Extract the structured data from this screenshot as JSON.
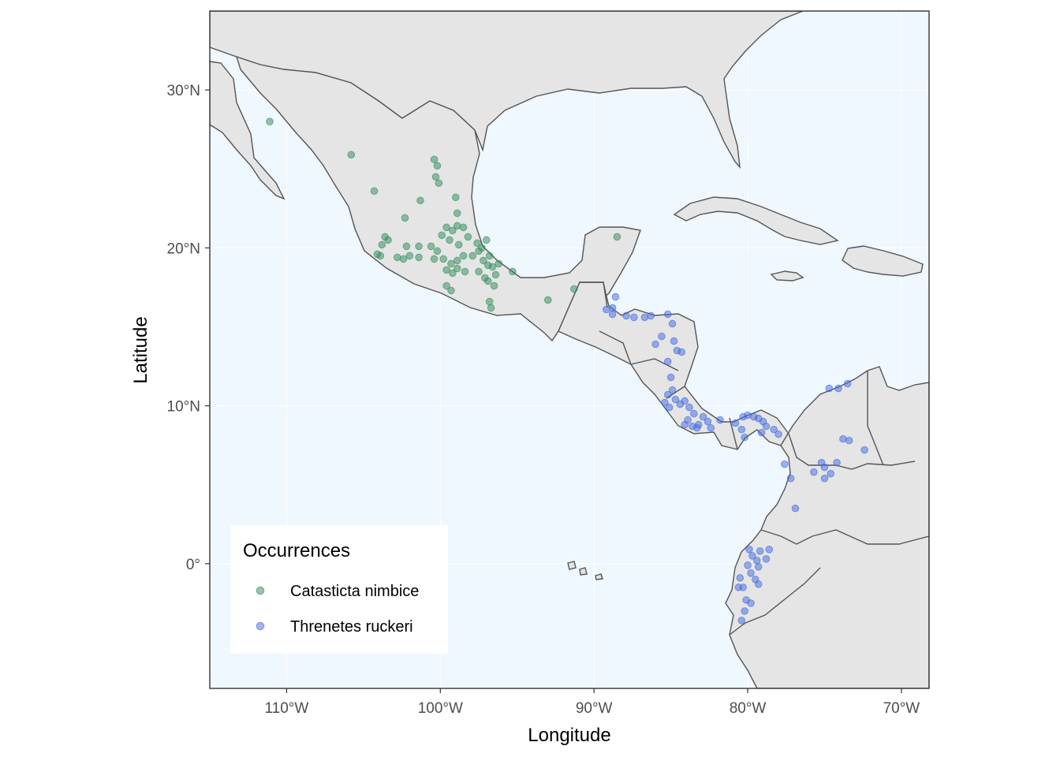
{
  "chart_data": {
    "type": "scatter",
    "map": true,
    "xlabel": "Longitude",
    "ylabel": "Latitude",
    "xlim": [
      -115,
      -68.2
    ],
    "ylim": [
      -7.9,
      35
    ],
    "x_ticks": [
      {
        "value": -110,
        "label": "110°W"
      },
      {
        "value": -100,
        "label": "100°W"
      },
      {
        "value": -90,
        "label": "90°W"
      },
      {
        "value": -80,
        "label": "80°W"
      },
      {
        "value": -70,
        "label": "70°W"
      }
    ],
    "y_ticks": [
      {
        "value": 30,
        "label": "30°N"
      },
      {
        "value": 20,
        "label": "20°N"
      },
      {
        "value": 10,
        "label": "10°N"
      },
      {
        "value": 0,
        "label": "0°"
      }
    ],
    "grid": true,
    "colors": {
      "ocean": "#EFF7FF",
      "land": "#E5E5E5",
      "border": "#555555",
      "grid": "#FFFFFF",
      "catasticta": "#2E8B57",
      "threnetes": "#4169E1"
    },
    "legend": {
      "title": "Occurrences",
      "position": "bottom-left",
      "items": [
        "Catasticta nimbice",
        "Threnetes ruckeri"
      ]
    },
    "series": [
      {
        "name": "Catasticta nimbice",
        "color": "#2E8B57",
        "points": [
          [
            -111.1,
            28.0
          ],
          [
            -105.8,
            25.9
          ],
          [
            -104.3,
            23.6
          ],
          [
            -100.4,
            25.6
          ],
          [
            -100.2,
            25.2
          ],
          [
            -100.3,
            24.5
          ],
          [
            -100.1,
            24.1
          ],
          [
            -101.3,
            23.0
          ],
          [
            -102.3,
            21.9
          ],
          [
            -99.0,
            23.2
          ],
          [
            -98.9,
            22.2
          ],
          [
            -103.6,
            20.7
          ],
          [
            -103.4,
            20.5
          ],
          [
            -103.8,
            20.2
          ],
          [
            -103.9,
            19.5
          ],
          [
            -104.1,
            19.6
          ],
          [
            -102.8,
            19.4
          ],
          [
            -102.4,
            19.3
          ],
          [
            -102.0,
            19.5
          ],
          [
            -102.2,
            20.1
          ],
          [
            -101.4,
            19.4
          ],
          [
            -101.4,
            20.1
          ],
          [
            -100.6,
            20.1
          ],
          [
            -100.2,
            19.8
          ],
          [
            -100.4,
            19.3
          ],
          [
            -99.9,
            20.8
          ],
          [
            -99.6,
            21.3
          ],
          [
            -99.2,
            21.1
          ],
          [
            -99.4,
            20.5
          ],
          [
            -98.8,
            20.2
          ],
          [
            -98.5,
            21.3
          ],
          [
            -98.9,
            21.4
          ],
          [
            -98.2,
            20.7
          ],
          [
            -99.8,
            19.3
          ],
          [
            -99.3,
            19.0
          ],
          [
            -99.6,
            18.6
          ],
          [
            -98.9,
            19.2
          ],
          [
            -98.5,
            19.5
          ],
          [
            -98.9,
            18.7
          ],
          [
            -99.2,
            18.4
          ],
          [
            -97.6,
            20.3
          ],
          [
            -97.3,
            20.0
          ],
          [
            -97.0,
            20.5
          ],
          [
            -96.8,
            19.5
          ],
          [
            -97.2,
            19.2
          ],
          [
            -96.9,
            18.9
          ],
          [
            -97.5,
            18.5
          ],
          [
            -97.1,
            18.1
          ],
          [
            -96.6,
            18.8
          ],
          [
            -96.9,
            17.9
          ],
          [
            -96.4,
            18.3
          ],
          [
            -96.2,
            19.0
          ],
          [
            -96.7,
            16.2
          ],
          [
            -96.8,
            16.6
          ],
          [
            -96.5,
            17.6
          ],
          [
            -97.9,
            19.5
          ],
          [
            -97.5,
            19.8
          ],
          [
            -99.6,
            17.6
          ],
          [
            -99.3,
            17.3
          ],
          [
            -95.3,
            18.5
          ],
          [
            -93.0,
            16.7
          ],
          [
            -88.5,
            20.7
          ],
          [
            -91.3,
            17.4
          ],
          [
            -98.4,
            18.5
          ]
        ]
      },
      {
        "name": "Threnetes ruckeri",
        "color": "#4169E1",
        "points": [
          [
            -89.2,
            16.1
          ],
          [
            -88.8,
            16.2
          ],
          [
            -88.6,
            16.9
          ],
          [
            -88.8,
            15.8
          ],
          [
            -87.9,
            15.7
          ],
          [
            -87.4,
            15.6
          ],
          [
            -86.7,
            15.6
          ],
          [
            -86.3,
            15.7
          ],
          [
            -85.2,
            15.8
          ],
          [
            -84.9,
            15.2
          ],
          [
            -85.6,
            14.4
          ],
          [
            -84.8,
            14.1
          ],
          [
            -84.6,
            13.5
          ],
          [
            -85.2,
            12.8
          ],
          [
            -86.0,
            13.9
          ],
          [
            -84.3,
            13.4
          ],
          [
            -85.0,
            11.8
          ],
          [
            -84.9,
            11.0
          ],
          [
            -85.2,
            10.7
          ],
          [
            -85.4,
            10.2
          ],
          [
            -85.1,
            9.9
          ],
          [
            -84.7,
            10.4
          ],
          [
            -84.4,
            10.1
          ],
          [
            -84.1,
            10.3
          ],
          [
            -83.8,
            9.9
          ],
          [
            -83.5,
            9.5
          ],
          [
            -83.9,
            9.1
          ],
          [
            -83.6,
            8.7
          ],
          [
            -83.2,
            8.8
          ],
          [
            -82.9,
            9.3
          ],
          [
            -82.6,
            9.0
          ],
          [
            -84.1,
            8.8
          ],
          [
            -83.3,
            8.6
          ],
          [
            -82.4,
            8.6
          ],
          [
            -81.8,
            9.1
          ],
          [
            -80.8,
            8.9
          ],
          [
            -80.3,
            9.3
          ],
          [
            -80.0,
            9.4
          ],
          [
            -79.6,
            9.3
          ],
          [
            -79.3,
            9.2
          ],
          [
            -79.0,
            9.0
          ],
          [
            -78.8,
            8.7
          ],
          [
            -78.3,
            8.5
          ],
          [
            -78.0,
            8.2
          ],
          [
            -80.4,
            8.5
          ],
          [
            -80.2,
            8.0
          ],
          [
            -79.1,
            8.3
          ],
          [
            -77.6,
            6.3
          ],
          [
            -77.2,
            5.4
          ],
          [
            -76.9,
            3.5
          ],
          [
            -75.7,
            5.8
          ],
          [
            -75.2,
            6.4
          ],
          [
            -75.0,
            5.4
          ],
          [
            -75.0,
            6.1
          ],
          [
            -74.6,
            5.7
          ],
          [
            -74.2,
            6.4
          ],
          [
            -73.8,
            7.9
          ],
          [
            -73.4,
            7.8
          ],
          [
            -72.4,
            7.2
          ],
          [
            -74.7,
            11.1
          ],
          [
            -74.1,
            11.1
          ],
          [
            -73.5,
            11.4
          ],
          [
            -79.2,
            0.8
          ],
          [
            -79.4,
            0.2
          ],
          [
            -79.7,
            0.5
          ],
          [
            -79.8,
            -0.6
          ],
          [
            -79.3,
            -0.2
          ],
          [
            -79.5,
            -1.0
          ],
          [
            -80.3,
            -1.5
          ],
          [
            -80.6,
            -1.5
          ],
          [
            -80.1,
            -2.3
          ],
          [
            -79.8,
            -2.5
          ],
          [
            -80.2,
            -3.0
          ],
          [
            -80.4,
            -3.6
          ],
          [
            -78.8,
            0.3
          ],
          [
            -78.6,
            0.9
          ],
          [
            -79.9,
            0.9
          ],
          [
            -80.0,
            -0.1
          ],
          [
            -80.5,
            -0.9
          ],
          [
            -79.3,
            -1.3
          ]
        ]
      }
    ]
  }
}
